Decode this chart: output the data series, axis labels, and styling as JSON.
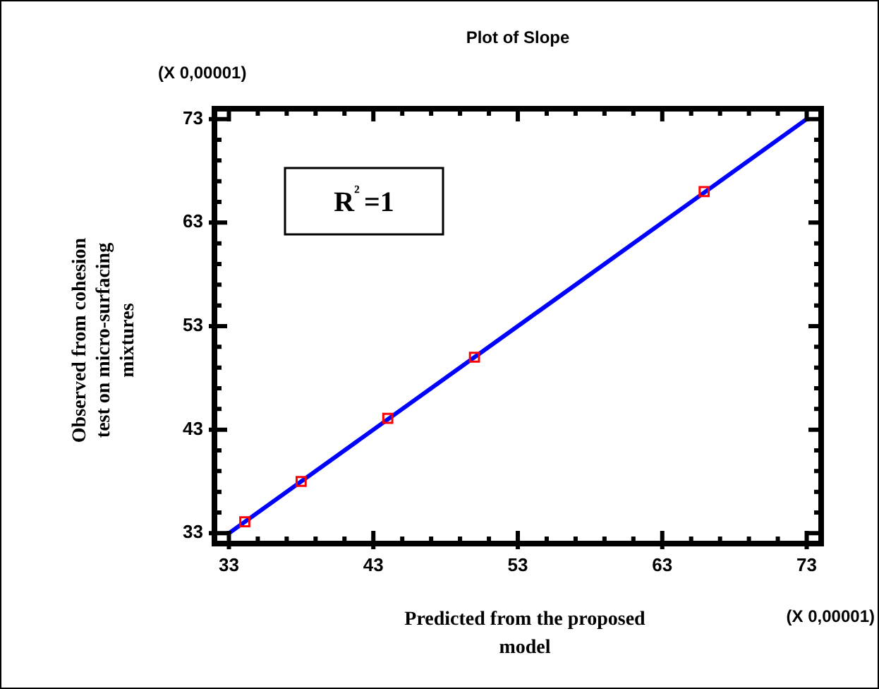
{
  "chart_data": {
    "type": "scatter",
    "title": "Plot of Slope",
    "xlabel": "Predicted from the proposed model",
    "ylabel": "Observed from cohesion test on micro-surfacing mixtures",
    "annotations": [
      "(X 0,00001)",
      "(X 0,00001)",
      "R²=1"
    ],
    "series": [
      {
        "type": "scatter",
        "color": "#ff0000",
        "marker": "square",
        "x": [
          34.1,
          38.0,
          44.0,
          50.0,
          65.9
        ],
        "values": [
          34.1,
          38.0,
          44.1,
          50.0,
          66.0
        ]
      },
      {
        "type": "line",
        "color": "#0000ff",
        "marker": "none",
        "x": [
          33,
          73
        ],
        "values": [
          33,
          73
        ]
      }
    ],
    "xlim": [
      32,
      74
    ],
    "ylim": [
      32,
      74
    ],
    "xticks": [
      33,
      {
        "value": 35,
        "label": null
      },
      {
        "value": 37,
        "label": null
      },
      {
        "value": 39,
        "label": null
      },
      {
        "value": 41,
        "label": null
      },
      43,
      {
        "value": 45,
        "label": null
      },
      {
        "value": 47,
        "label": null
      },
      {
        "value": 49,
        "label": null
      },
      {
        "value": 51,
        "label": null
      },
      53,
      {
        "value": 55,
        "label": null
      },
      {
        "value": 57,
        "label": null
      },
      {
        "value": 59,
        "label": null
      },
      {
        "value": 61,
        "label": null
      },
      63,
      {
        "value": 65,
        "label": null
      },
      {
        "value": 67,
        "label": null
      },
      {
        "value": 69,
        "label": null
      },
      {
        "value": 71,
        "label": null
      },
      73
    ],
    "yticks": [
      33,
      {
        "value": 35,
        "label": null
      },
      {
        "value": 37,
        "label": null
      },
      {
        "value": 39,
        "label": null
      },
      {
        "value": 41,
        "label": null
      },
      43,
      {
        "value": 45,
        "label": null
      },
      {
        "value": 47,
        "label": null
      },
      {
        "value": 49,
        "label": null
      },
      {
        "value": 51,
        "label": null
      },
      53,
      {
        "value": 55,
        "label": null
      },
      {
        "value": 57,
        "label": null
      },
      {
        "value": 59,
        "label": null
      },
      {
        "value": 61,
        "label": null
      },
      63,
      {
        "value": 65,
        "label": null
      },
      {
        "value": 67,
        "label": null
      },
      {
        "value": 69,
        "label": null
      },
      {
        "value": 71,
        "label": null
      },
      73
    ]
  }
}
